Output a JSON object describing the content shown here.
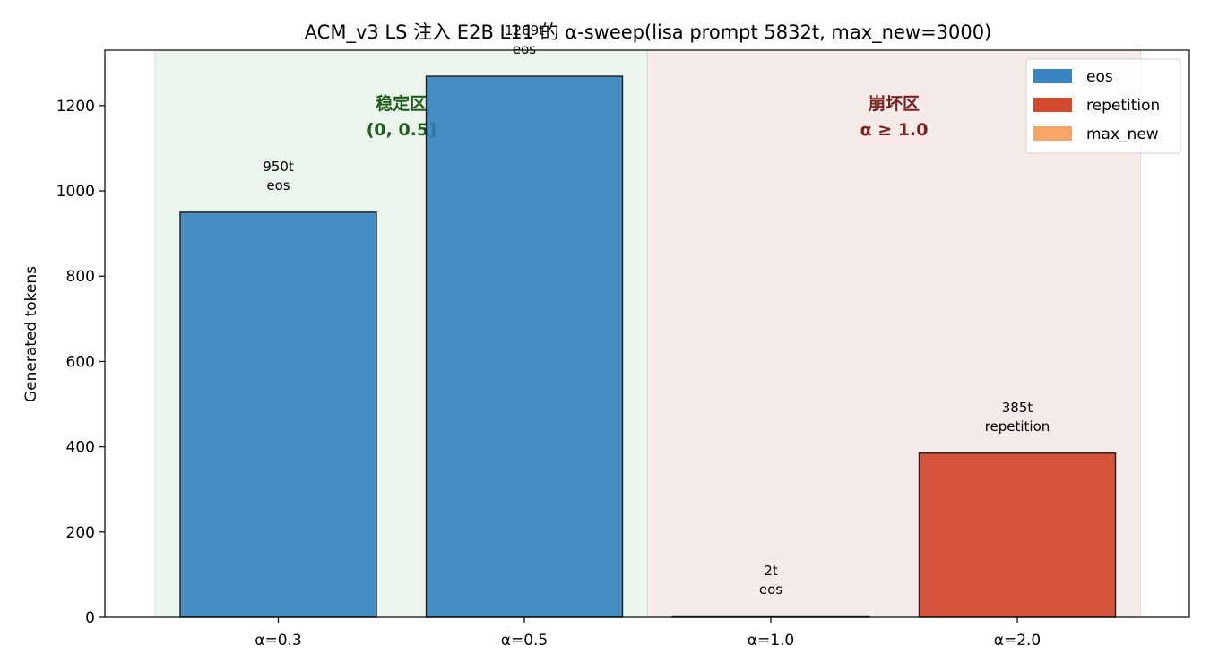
{
  "chart_data": {
    "type": "bar",
    "title": "ACM_v3 LS 注入 E2B L11 的 α-sweep(lisa prompt 5832t, max_new=3000)",
    "xlabel": "",
    "ylabel": "Generated tokens",
    "ylim": [
      0,
      1330
    ],
    "y_ticks": [
      0,
      200,
      400,
      600,
      800,
      1000,
      1200
    ],
    "categories": [
      "α=0.3",
      "α=0.5",
      "α=1.0",
      "α=2.0"
    ],
    "values": [
      950,
      1269,
      2,
      385
    ],
    "bar_labels": [
      [
        "950t",
        "eos"
      ],
      [
        "1269t",
        "eos"
      ],
      [
        "2t",
        "eos"
      ],
      [
        "385t",
        "repetition"
      ]
    ],
    "stop_reasons": [
      "eos",
      "eos",
      "eos",
      "repetition"
    ],
    "colors": {
      "eos": "#2e7ebd",
      "repetition": "#d13f22",
      "max_new": "#f2a160"
    },
    "legend": {
      "placement": "top-right",
      "entries": [
        {
          "key": "eos",
          "label": "eos"
        },
        {
          "key": "repetition",
          "label": "repetition"
        },
        {
          "key": "max_new",
          "label": "max_new"
        }
      ]
    },
    "zones": [
      {
        "lines": [
          "稳定区",
          "(0, 0.5]"
        ],
        "from_category": 0,
        "to_category": 1,
        "fill": "#e6f2e6",
        "text_color": "#1e5c1e"
      },
      {
        "lines": [
          "崩坏区",
          "α ≥ 1.0"
        ],
        "from_category": 2,
        "to_category": 3,
        "fill": "#f4e4e3",
        "text_color": "#7a1f1f"
      }
    ],
    "grid": false
  }
}
